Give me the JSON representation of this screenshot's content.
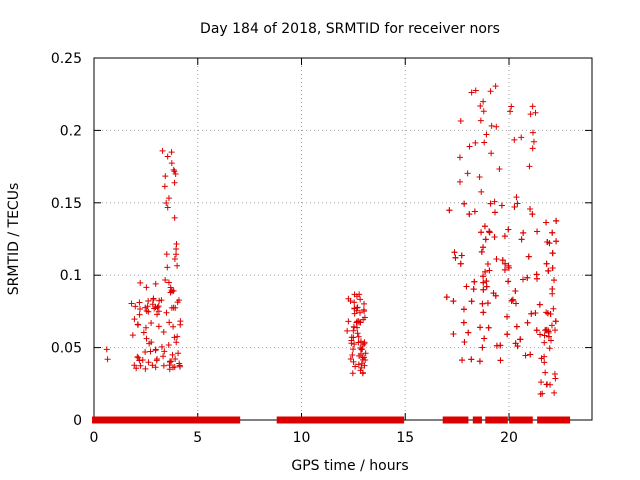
{
  "chart_data": {
    "type": "scatter",
    "title": "Day 184 of 2018, SRMTID for receiver nors",
    "xlabel": "GPS time / hours",
    "ylabel": "SRMTID / TECUs",
    "xlim": [
      0,
      24
    ],
    "ylim": [
      0,
      0.25
    ],
    "x_ticks": [
      0,
      5,
      10,
      15,
      20
    ],
    "y_ticks": [
      0,
      0.05,
      0.1,
      0.15,
      0.2,
      0.25
    ],
    "x_tick_labels": [
      "0",
      "5",
      "10",
      "15",
      "20"
    ],
    "y_tick_labels": [
      "0",
      "0.05",
      "0.1",
      "0.15",
      "0.2",
      "0.25"
    ],
    "grid": true,
    "marker": "+",
    "series_color": "#dd0000",
    "zero_segments": [
      [
        0.05,
        1.75
      ],
      [
        1.95,
        3.65
      ],
      [
        3.85,
        4.0
      ],
      [
        4.15,
        6.9
      ],
      [
        8.95,
        12.15
      ],
      [
        12.35,
        12.5
      ],
      [
        12.7,
        13.0
      ],
      [
        13.2,
        14.8
      ],
      [
        16.95,
        17.9
      ],
      [
        18.4,
        18.55
      ],
      [
        19.0,
        19.8
      ],
      [
        20.15,
        21.0
      ],
      [
        21.5,
        22.8
      ]
    ],
    "clusters": [
      {
        "x_range": [
          0.6,
          0.7
        ],
        "y_range": [
          0.035,
          0.055
        ],
        "count": 2
      },
      {
        "x_range": [
          1.8,
          4.2
        ],
        "y_range": [
          0.035,
          0.095
        ],
        "count": 90
      },
      {
        "x_range": [
          3.3,
          4.1
        ],
        "y_range": [
          0.095,
          0.19
        ],
        "count": 22
      },
      {
        "x_range": [
          12.2,
          13.1
        ],
        "y_range": [
          0.032,
          0.087
        ],
        "count": 65
      },
      {
        "x_range": [
          17.0,
          22.3
        ],
        "y_range": [
          0.04,
          0.15
        ],
        "count": 230
      },
      {
        "x_range": [
          17.4,
          21.3
        ],
        "y_range": [
          0.15,
          0.232
        ],
        "count": 35
      },
      {
        "x_range": [
          21.4,
          22.3
        ],
        "y_range": [
          0.017,
          0.09
        ],
        "count": 25
      }
    ]
  }
}
